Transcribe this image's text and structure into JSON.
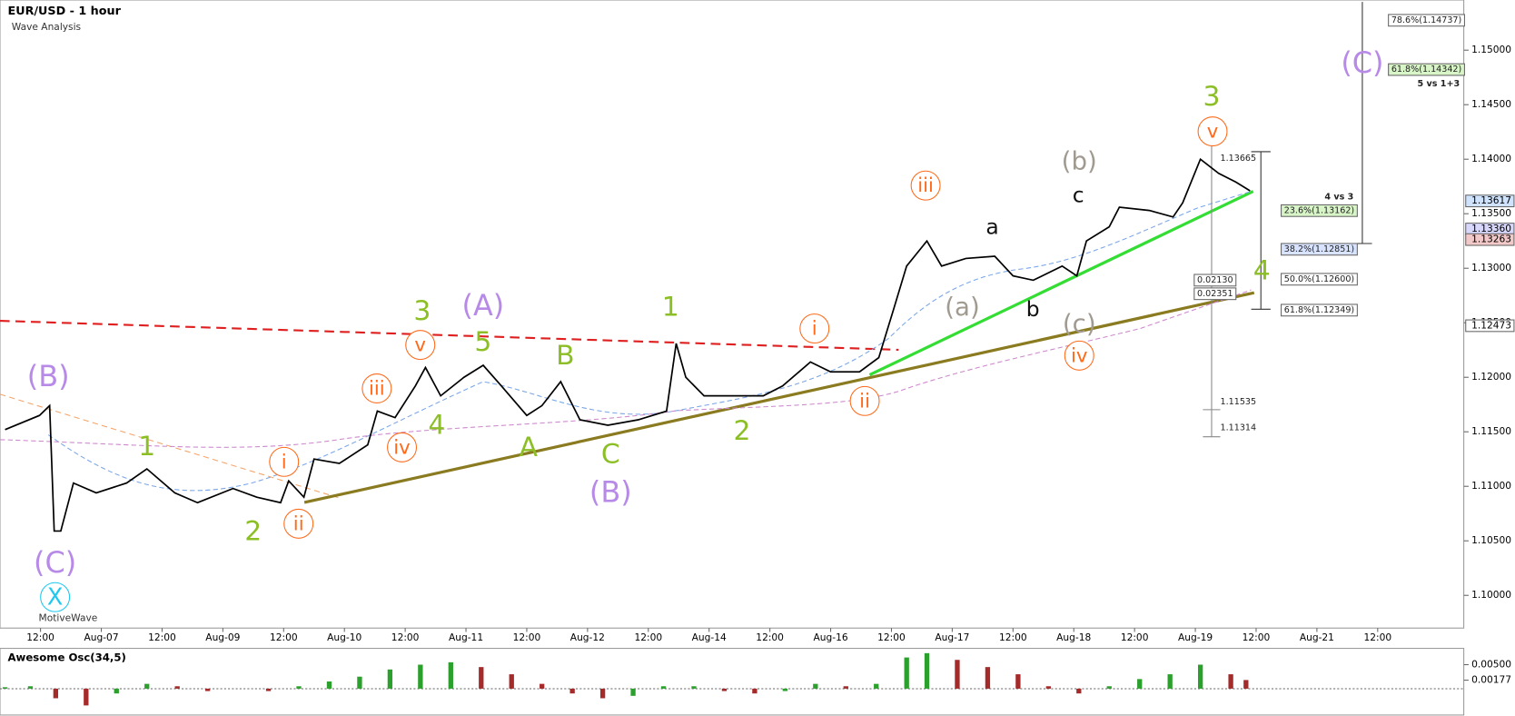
{
  "chart_data": [
    {
      "type": "line",
      "title": "EUR/USD - 1 hour",
      "subtitle": "Wave Analysis",
      "watermark": "MotiveWave",
      "color": "#000000",
      "x": [
        -7,
        -0.2,
        1.8,
        2.7,
        4,
        6.5,
        11,
        17,
        21,
        26.5,
        31,
        38,
        42.7,
        47.4,
        49,
        52,
        54,
        59,
        64.6,
        66.5,
        70,
        74,
        76,
        79,
        83.6,
        87.4,
        91,
        96,
        99,
        102.7,
        106.5,
        112,
        118,
        123.6,
        125.5,
        127.4,
        131,
        137,
        142.7,
        146.5,
        152,
        156,
        161.7,
        165.5,
        168.4,
        171,
        175,
        177.9,
        182.7,
        188.4,
        192,
        196,
        201.7,
        204.6,
        206.5,
        211,
        213,
        218.9,
        223.6,
        225.5,
        229,
        232.6,
        236,
        238.8
      ],
      "values": [
        1.1152,
        1.1165,
        1.1174,
        1.1059,
        1.1059,
        1.1103,
        1.1094,
        1.1103,
        1.1116,
        1.1094,
        1.1085,
        1.1098,
        1.109,
        1.1085,
        1.1105,
        1.109,
        1.1125,
        1.1121,
        1.1138,
        1.1169,
        1.1163,
        1.1192,
        1.1209,
        1.1183,
        1.12,
        1.1211,
        1.1192,
        1.1165,
        1.1174,
        1.1196,
        1.1161,
        1.1156,
        1.1161,
        1.1169,
        1.1231,
        1.12,
        1.1183,
        1.1183,
        1.1183,
        1.1192,
        1.1214,
        1.1205,
        1.1205,
        1.1218,
        1.1262,
        1.1302,
        1.1325,
        1.1302,
        1.1309,
        1.1311,
        1.1293,
        1.1289,
        1.1302,
        1.1293,
        1.1325,
        1.1338,
        1.1356,
        1.1353,
        1.1347,
        1.136,
        1.14,
        1.1387,
        1.1379,
        1.1371
      ],
      "xlim": [
        -8,
        281
      ],
      "ylim": [
        1.097,
        1.1546
      ],
      "xticks": [
        {
          "value": 0,
          "label": "12:00"
        },
        {
          "value": 12,
          "label": "Aug-07"
        },
        {
          "value": 24,
          "label": "12:00"
        },
        {
          "value": 36,
          "label": "Aug-09"
        },
        {
          "value": 48,
          "label": "12:00"
        },
        {
          "value": 60,
          "label": "Aug-10"
        },
        {
          "value": 72,
          "label": "12:00"
        },
        {
          "value": 84,
          "label": "Aug-11"
        },
        {
          "value": 96,
          "label": "12:00"
        },
        {
          "value": 108,
          "label": "Aug-12"
        },
        {
          "value": 120,
          "label": "12:00"
        },
        {
          "value": 132,
          "label": "Aug-14"
        },
        {
          "value": 144,
          "label": "12:00"
        },
        {
          "value": 156,
          "label": "Aug-16"
        },
        {
          "value": 168,
          "label": "12:00"
        },
        {
          "value": 180,
          "label": "Aug-17"
        },
        {
          "value": 192,
          "label": "12:00"
        },
        {
          "value": 204,
          "label": "Aug-18"
        },
        {
          "value": 216,
          "label": "12:00"
        },
        {
          "value": 228,
          "label": "Aug-19"
        },
        {
          "value": 240,
          "label": "12:00"
        },
        {
          "value": 252,
          "label": "Aug-21"
        },
        {
          "value": 264,
          "label": "12:00"
        }
      ],
      "yticks": [
        {
          "value": 1.1,
          "label": "1.10000"
        },
        {
          "value": 1.105,
          "label": "1.10500"
        },
        {
          "value": 1.11,
          "label": "1.11000"
        },
        {
          "value": 1.115,
          "label": "1.11500"
        },
        {
          "value": 1.12,
          "label": "1.12000"
        },
        {
          "value": 1.125,
          "label": "1.12500"
        },
        {
          "value": 1.13,
          "label": "1.13000"
        },
        {
          "value": 1.135,
          "label": "1.13500"
        },
        {
          "value": 1.14,
          "label": "1.14000"
        },
        {
          "value": 1.145,
          "label": "1.14500"
        },
        {
          "value": 1.15,
          "label": "1.15000"
        }
      ],
      "price_tags": [
        {
          "value": 1.13617,
          "label": "1.13617"
        },
        {
          "value": 1.1336,
          "label": "1.13360"
        },
        {
          "value": 1.13263,
          "label": "1.13263"
        },
        {
          "value": 1.12473,
          "label": "1.12473"
        }
      ],
      "annotations": [
        "(B)",
        "(C)",
        "X",
        "1",
        "2",
        "i",
        "ii",
        "iii",
        "iv",
        "v",
        "3",
        "4",
        "(A)",
        "5",
        "B",
        "A",
        "C",
        "(B)",
        "1",
        "2",
        "i",
        "ii",
        "iii",
        "(a)",
        "a",
        "b",
        "c",
        "(b)",
        "(c)",
        "iv",
        "3",
        "v",
        "4",
        "(C)"
      ],
      "fib_labels": [
        "78.6%(1.14737)",
        "61.8%(1.14342)",
        "5 vs 1+3",
        "4 vs 3",
        "23.6%(1.13162)",
        "38.2%(1.12851)",
        "50.0%(1.12600)",
        "61.8%(1.12349)",
        "0.02130",
        "0.02351",
        "1.13665",
        "1.11535",
        "1.11314"
      ]
    },
    {
      "type": "bar",
      "title": "Awesome Osc(34,5)",
      "up_color": "#2ca02c",
      "down_color": "#a52a2a",
      "x": [
        -7,
        -2,
        3,
        9,
        15,
        21,
        27,
        33,
        39,
        45,
        51,
        57,
        63,
        69,
        75,
        81,
        87,
        93,
        99,
        105,
        111,
        117,
        123,
        129,
        135,
        141,
        147,
        153,
        159,
        165,
        171,
        175,
        181,
        187,
        193,
        199,
        205,
        211,
        217,
        223,
        229,
        235,
        238
      ],
      "values": [
        0.0003,
        0.0005,
        -0.002,
        -0.0035,
        -0.001,
        0.001,
        0.0005,
        -0.0005,
        0,
        -0.0005,
        0.0005,
        0.0015,
        0.0025,
        0.004,
        0.005,
        0.0055,
        0.0045,
        0.003,
        0.001,
        -0.001,
        -0.002,
        -0.0015,
        0.0005,
        0.0005,
        -0.0005,
        -0.001,
        -0.0005,
        0.001,
        0.0005,
        0.001,
        0.0065,
        0.0074,
        0.006,
        0.0045,
        0.003,
        0.0005,
        -0.001,
        0.0005,
        0.002,
        0.003,
        0.005,
        0.003,
        0.0018
      ],
      "ylim": [
        -0.0055,
        0.0082
      ],
      "yticks": [
        {
          "value": 0.005,
          "label": "0.00500"
        },
        {
          "value": 0.00177,
          "label": "0.00177"
        }
      ]
    }
  ]
}
